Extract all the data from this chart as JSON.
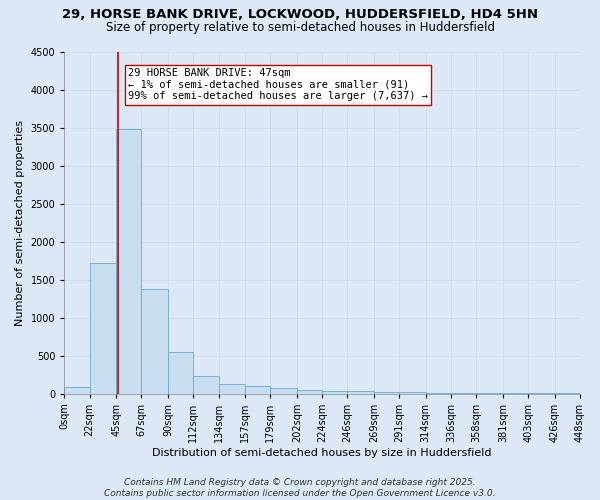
{
  "title_line1": "29, HORSE BANK DRIVE, LOCKWOOD, HUDDERSFIELD, HD4 5HN",
  "title_line2": "Size of property relative to semi-detached houses in Huddersfield",
  "xlabel": "Distribution of semi-detached houses by size in Huddersfield",
  "ylabel": "Number of semi-detached properties",
  "bar_left_edges": [
    0,
    22,
    45,
    67,
    90,
    112,
    134,
    157,
    179,
    202,
    224,
    246,
    269,
    291,
    314,
    336,
    358,
    381,
    403,
    426
  ],
  "bar_widths": [
    22,
    23,
    22,
    23,
    22,
    22,
    23,
    22,
    23,
    22,
    22,
    23,
    22,
    23,
    22,
    22,
    23,
    22,
    23,
    22
  ],
  "bar_heights": [
    91,
    1720,
    3480,
    1380,
    540,
    230,
    130,
    100,
    75,
    50,
    40,
    30,
    20,
    15,
    10,
    8,
    5,
    3,
    2,
    1
  ],
  "bar_color": "#c8ddf0",
  "bar_edge_color": "#6aaad4",
  "property_line_x": 47,
  "annotation_text": "29 HORSE BANK DRIVE: 47sqm\n← 1% of semi-detached houses are smaller (91)\n99% of semi-detached houses are larger (7,637) →",
  "annotation_box_color": "#ffffff",
  "annotation_box_edge_color": "#cc0000",
  "vline_color": "#cc0000",
  "ylim": [
    0,
    4500
  ],
  "xlim": [
    0,
    448
  ],
  "yticks": [
    0,
    500,
    1000,
    1500,
    2000,
    2500,
    3000,
    3500,
    4000,
    4500
  ],
  "xtick_labels": [
    "0sqm",
    "22sqm",
    "45sqm",
    "67sqm",
    "90sqm",
    "112sqm",
    "134sqm",
    "157sqm",
    "179sqm",
    "202sqm",
    "224sqm",
    "246sqm",
    "269sqm",
    "291sqm",
    "314sqm",
    "336sqm",
    "358sqm",
    "381sqm",
    "403sqm",
    "426sqm",
    "448sqm"
  ],
  "xtick_positions": [
    0,
    22,
    45,
    67,
    90,
    112,
    134,
    157,
    179,
    202,
    224,
    246,
    269,
    291,
    314,
    336,
    358,
    381,
    403,
    426,
    448
  ],
  "grid_color": "#d0dce8",
  "bg_color": "#dce8f5",
  "plot_bg_color": "#dce8f5",
  "footer_line1": "Contains HM Land Registry data © Crown copyright and database right 2025.",
  "footer_line2": "Contains public sector information licensed under the Open Government Licence v3.0.",
  "title_fontsize": 9.5,
  "subtitle_fontsize": 8.5,
  "axis_label_fontsize": 8,
  "tick_fontsize": 7,
  "annotation_fontsize": 7.5,
  "footer_fontsize": 6.5
}
